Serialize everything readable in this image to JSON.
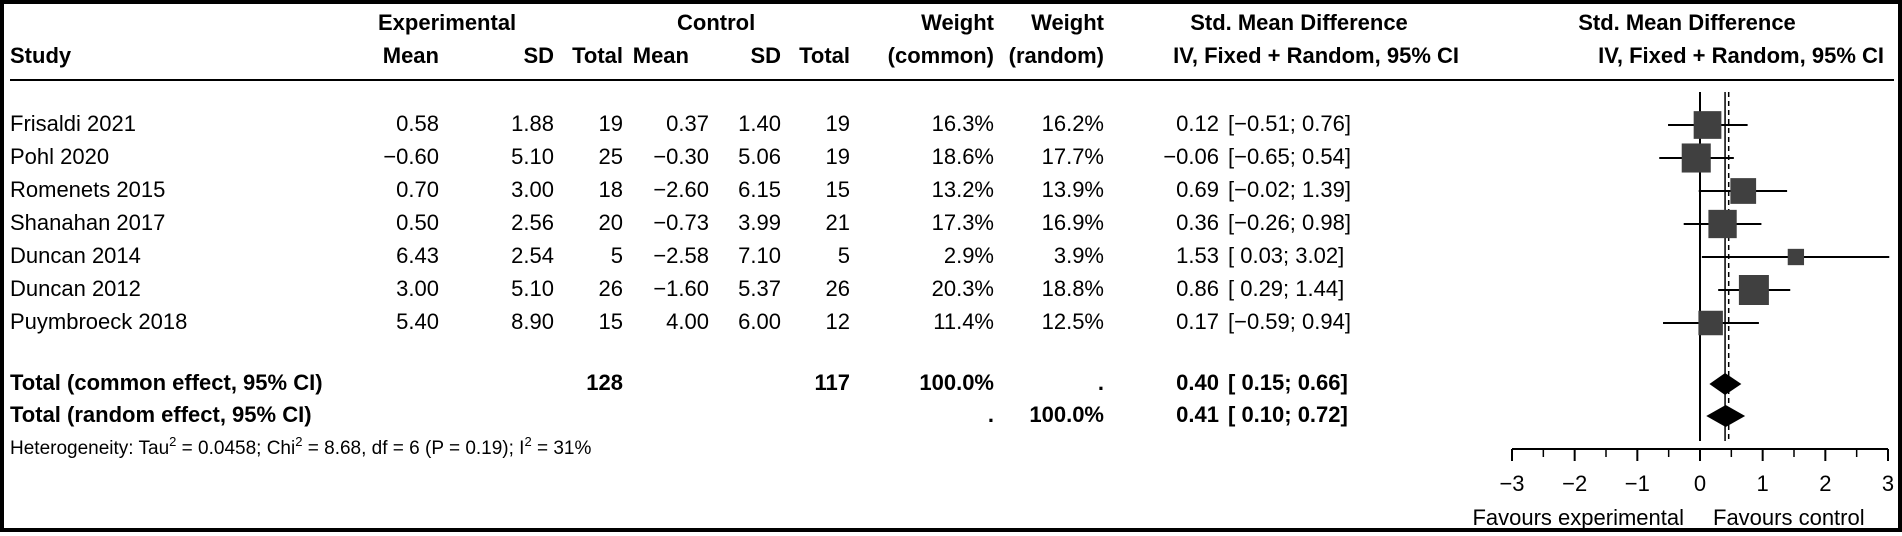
{
  "header": {
    "experimental": "Experimental",
    "control": "Control",
    "weight1": "Weight",
    "weight2": "Weight",
    "smd": "Std. Mean Difference",
    "smd_plot": "Std. Mean Difference",
    "study": "Study",
    "mean_e": "Mean",
    "sd_e": "SD",
    "total_e": "Total",
    "mean_c": "Mean",
    "sd_c": "SD",
    "total_c": "Total",
    "common": "(common)",
    "random": "(random)",
    "method": "IV, Fixed + Random, 95% CI",
    "method_plot": "IV, Fixed + Random, 95% CI"
  },
  "studies": [
    {
      "study": "Frisaldi 2021",
      "mean_e": "0.58",
      "sd_e": "1.88",
      "n_e": "19",
      "mean_c": "0.37",
      "sd_c": "1.40",
      "n_c": "19",
      "w_common": "16.3%",
      "w_random": "16.2%",
      "smd_text": "0.12",
      "ci_text": "[−0.51; 0.76]"
    },
    {
      "study": "Pohl 2020",
      "mean_e": "−0.60",
      "sd_e": "5.10",
      "n_e": "25",
      "mean_c": "−0.30",
      "sd_c": "5.06",
      "n_c": "19",
      "w_common": "18.6%",
      "w_random": "17.7%",
      "smd_text": "−0.06",
      "ci_text": "[−0.65; 0.54]"
    },
    {
      "study": "Romenets 2015",
      "mean_e": "0.70",
      "sd_e": "3.00",
      "n_e": "18",
      "mean_c": "−2.60",
      "sd_c": "6.15",
      "n_c": "15",
      "w_common": "13.2%",
      "w_random": "13.9%",
      "smd_text": "0.69",
      "ci_text": "[−0.02; 1.39]"
    },
    {
      "study": "Shanahan 2017",
      "mean_e": "0.50",
      "sd_e": "2.56",
      "n_e": "20",
      "mean_c": "−0.73",
      "sd_c": "3.99",
      "n_c": "21",
      "w_common": "17.3%",
      "w_random": "16.9%",
      "smd_text": "0.36",
      "ci_text": "[−0.26; 0.98]"
    },
    {
      "study": "Duncan 2014",
      "mean_e": "6.43",
      "sd_e": "2.54",
      "n_e": "5",
      "mean_c": "−2.58",
      "sd_c": "7.10",
      "n_c": "5",
      "w_common": "2.9%",
      "w_random": "3.9%",
      "smd_text": "1.53",
      "ci_text": "[ 0.03; 3.02]"
    },
    {
      "study": "Duncan 2012",
      "mean_e": "3.00",
      "sd_e": "5.10",
      "n_e": "26",
      "mean_c": "−1.60",
      "sd_c": "5.37",
      "n_c": "26",
      "w_common": "20.3%",
      "w_random": "18.8%",
      "smd_text": "0.86",
      "ci_text": "[ 0.29; 1.44]"
    },
    {
      "study": "Puymbroeck 2018",
      "mean_e": "5.40",
      "sd_e": "8.90",
      "n_e": "15",
      "mean_c": "4.00",
      "sd_c": "6.00",
      "n_c": "12",
      "w_common": "11.4%",
      "w_random": "12.5%",
      "smd_text": "0.17",
      "ci_text": "[−0.59; 0.94]"
    }
  ],
  "totals": {
    "common": {
      "label": "Total (common effect, 95% CI)",
      "n_e": "128",
      "n_c": "117",
      "w_common": "100.0%",
      "w_random": ".",
      "smd_text": "0.40",
      "ci_text": "[ 0.15; 0.66]"
    },
    "random": {
      "label": "Total (random effect, 95% CI)",
      "w_common": ".",
      "w_random": "100.0%",
      "smd_text": "0.41",
      "ci_text": "[ 0.10; 0.72]"
    }
  },
  "heterogeneity": {
    "prefix": "Heterogeneity: Tau",
    "tau_sup": "2",
    "tau_val": " = 0.0458; Chi",
    "chi_sup": "2",
    "chi_val": " = 8.68, df = 6 (P = 0.19); I",
    "i_sup": "2",
    "i_val": " = 31%"
  },
  "axis": {
    "favours_left": "Favours experimental",
    "favours_right": "Favours control"
  },
  "chart_data": {
    "type": "forest",
    "xlim": [
      -3,
      3
    ],
    "ticks": [
      -3,
      -2,
      -1,
      0,
      1,
      2,
      3
    ],
    "tick_labels": [
      "−3",
      "−2",
      "−1",
      "0",
      "1",
      "2",
      "3"
    ],
    "null_value": 0,
    "studies": [
      {
        "name": "Frisaldi 2021",
        "smd": 0.12,
        "lower": -0.51,
        "upper": 0.76,
        "weight": 16.3
      },
      {
        "name": "Pohl 2020",
        "smd": -0.06,
        "lower": -0.65,
        "upper": 0.54,
        "weight": 18.6
      },
      {
        "name": "Romenets 2015",
        "smd": 0.69,
        "lower": -0.02,
        "upper": 1.39,
        "weight": 13.2
      },
      {
        "name": "Shanahan 2017",
        "smd": 0.36,
        "lower": -0.26,
        "upper": 0.98,
        "weight": 17.3
      },
      {
        "name": "Duncan 2014",
        "smd": 1.53,
        "lower": 0.03,
        "upper": 3.02,
        "weight": 2.9
      },
      {
        "name": "Duncan 2012",
        "smd": 0.86,
        "lower": 0.29,
        "upper": 1.44,
        "weight": 20.3
      },
      {
        "name": "Puymbroeck 2018",
        "smd": 0.17,
        "lower": -0.59,
        "upper": 0.94,
        "weight": 11.4
      }
    ],
    "pooled": [
      {
        "name": "Total (common effect, 95% CI)",
        "smd": 0.4,
        "lower": 0.15,
        "upper": 0.66
      },
      {
        "name": "Total (random effect, 95% CI)",
        "smd": 0.41,
        "lower": 0.1,
        "upper": 0.72
      }
    ]
  }
}
